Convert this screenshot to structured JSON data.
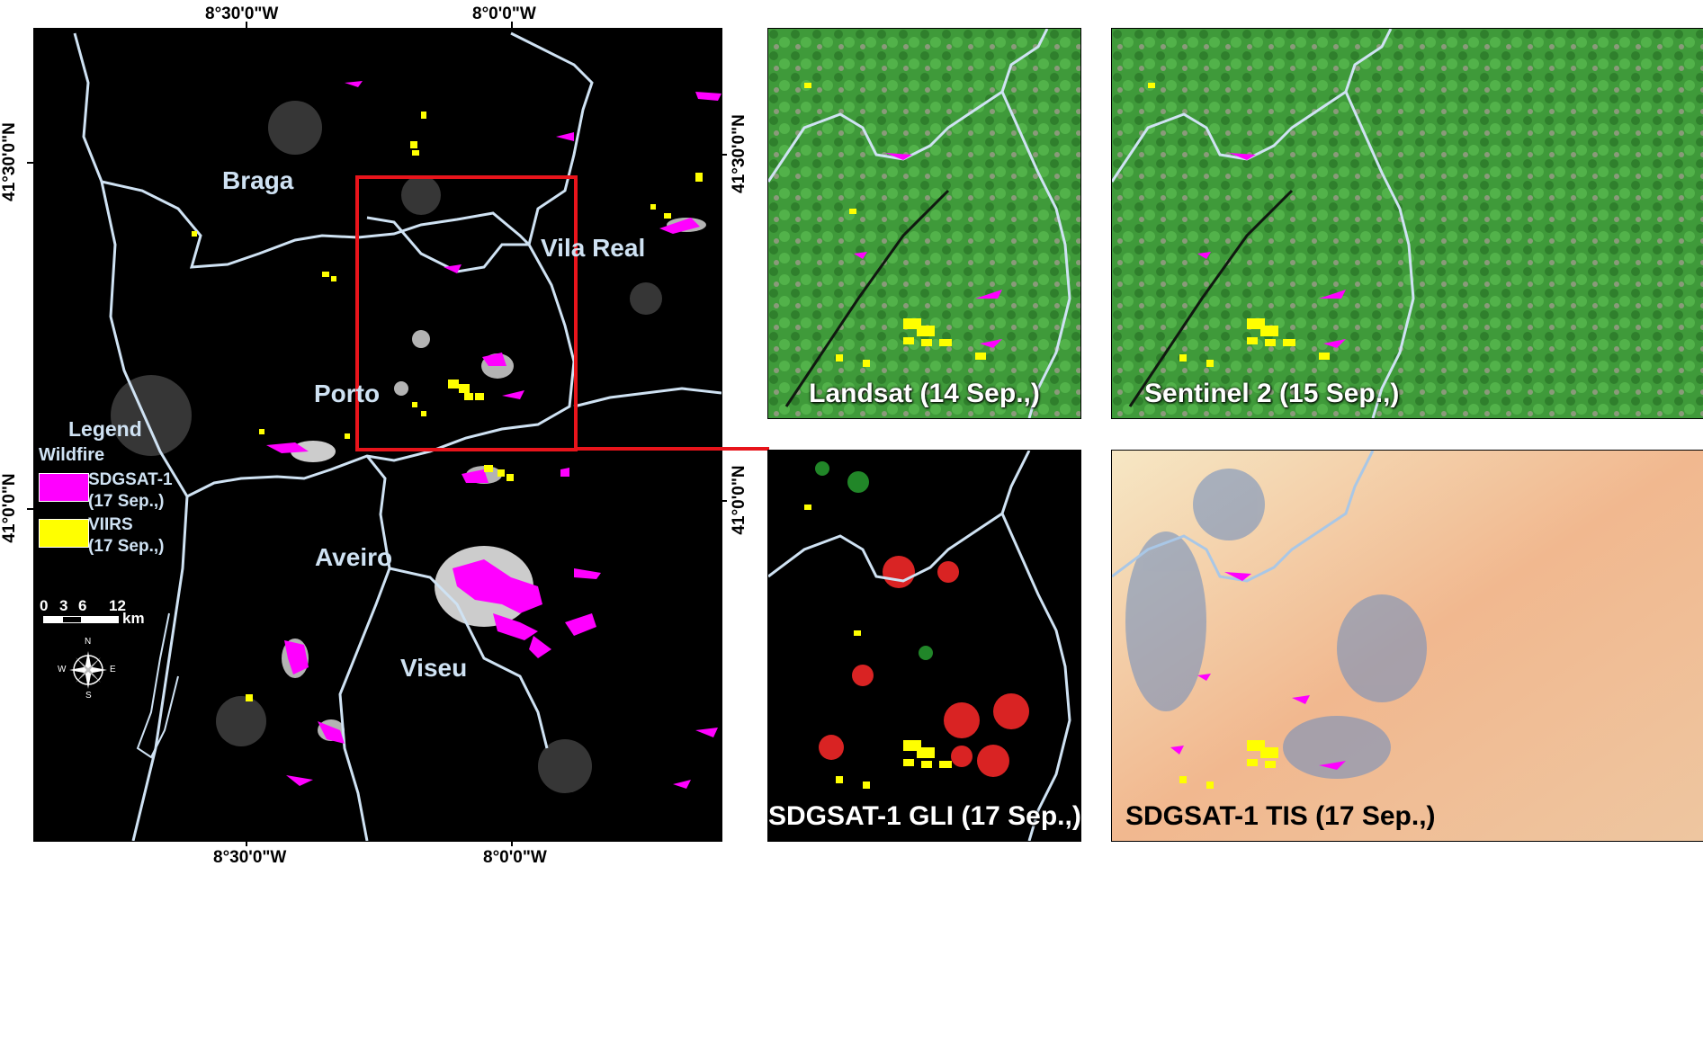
{
  "main_map": {
    "coords": {
      "top_lon_1": "8°30'0\"W",
      "top_lon_2": "8°0'0\"W",
      "bottom_lon_1": "8°30'0\"W",
      "bottom_lon_2": "8°0'0\"W",
      "left_lat_1": "41°30'0\"N",
      "left_lat_2": "41°0'0\"N",
      "right_lat_1": "41°30'0\"N",
      "right_lat_2": "41°0'0\"N"
    },
    "places": {
      "braga": "Braga",
      "vila_real": "Vila Real",
      "porto": "Porto",
      "aveiro": "Aveiro",
      "viseu": "Viseu"
    },
    "legend": {
      "title": "Legend",
      "subtitle": "Wildfire",
      "items": [
        {
          "line1": "SDGSAT-1",
          "line2": "(17 Sep.,)",
          "color": "#ff00ff"
        },
        {
          "line1": "VIIRS",
          "line2": "(17 Sep.,)",
          "color": "#ffff00"
        }
      ]
    },
    "scale_bar": {
      "ticks": [
        "0",
        "3",
        "6",
        "12"
      ],
      "unit": "km"
    },
    "compass": {
      "n": "N",
      "s": "S",
      "e": "E",
      "w": "W"
    }
  },
  "panels": {
    "landsat": "Landsat (14 Sep.,)",
    "sentinel": "Sentinel 2 (15 Sep.,)",
    "gli": "SDGSAT-1 GLI (17 Sep.,)",
    "tis": "SDGSAT-1 TIS (17 Sep.,)"
  },
  "colors": {
    "sdgsat_fire": "#ff00ff",
    "viirs_fire": "#ffff00",
    "boundary": "#cfe2f3",
    "highlight_box": "#e8141b",
    "vegetation": "#3f9a3a"
  }
}
